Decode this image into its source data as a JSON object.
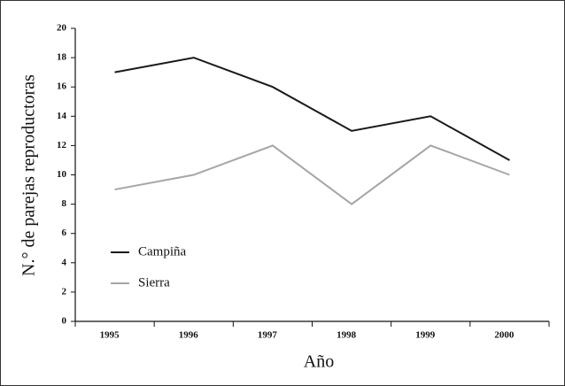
{
  "chart_data": {
    "type": "line",
    "x_label": "Año",
    "y_label": "N.° de parejas reproductoras",
    "categories": [
      "1995",
      "1996",
      "1997",
      "1998",
      "1999",
      "2000"
    ],
    "series": [
      {
        "name": "Campiña",
        "color": "#1a1a1a",
        "values": [
          17,
          18,
          16,
          13,
          14,
          11
        ]
      },
      {
        "name": "Sierra",
        "color": "#a6a6a6",
        "values": [
          9,
          10,
          12,
          8,
          12,
          10
        ]
      }
    ],
    "ylim": [
      0,
      20
    ],
    "yticks": [
      0,
      2,
      4,
      6,
      8,
      10,
      12,
      14,
      16,
      18,
      20
    ],
    "grid": false,
    "legend": "lower left"
  }
}
